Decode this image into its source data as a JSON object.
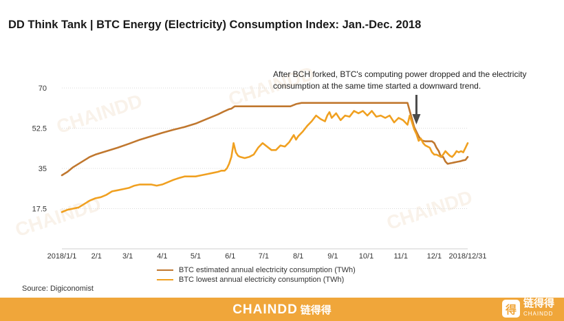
{
  "title": "DD Think Tank | BTC Energy (Electricity) Consumption Index: Jan.-Dec. 2018",
  "annotation": "After BCH forked, BTC's computing power dropped and the electricity consumption at the same time started a downward trend.",
  "source": "Source: Digiconomist",
  "footer": {
    "brand": "CHAINDD",
    "brand_cn": "链得得"
  },
  "logo": {
    "name": "链得得",
    "sub": "CHAINDD",
    "glyph": "得"
  },
  "watermark": "CHAINDD",
  "colors": {
    "estimated": "#c0772e",
    "lowest": "#f0a020",
    "footer": "#f0a63a",
    "arrow": "#4a4a4a"
  },
  "chart_data": {
    "type": "line",
    "title": "DD Think Tank | BTC Energy (Electricity) Consumption Index: Jan.-Dec. 2018",
    "xlabel": "",
    "ylabel": "",
    "ylim": [
      0,
      70
    ],
    "yticks": [
      17.5,
      35,
      52.5,
      70
    ],
    "xlim": [
      0,
      364
    ],
    "xticks": [
      {
        "day": 0,
        "label": "2018/1/1"
      },
      {
        "day": 31,
        "label": "2/1"
      },
      {
        "day": 59,
        "label": "3/1"
      },
      {
        "day": 90,
        "label": "4/1"
      },
      {
        "day": 120,
        "label": "5/1"
      },
      {
        "day": 151,
        "label": "6/1"
      },
      {
        "day": 181,
        "label": "7/1"
      },
      {
        "day": 212,
        "label": "8/1"
      },
      {
        "day": 243,
        "label": "9/1"
      },
      {
        "day": 273,
        "label": "10/1"
      },
      {
        "day": 304,
        "label": "11/1"
      },
      {
        "day": 334,
        "label": "12/1"
      },
      {
        "day": 364,
        "label": "2018/12/31"
      }
    ],
    "annotation_day": 318,
    "series": [
      {
        "name": "BTC estimated annual electricity consumption (TWh)",
        "x": [
          0,
          5,
          10,
          15,
          20,
          25,
          30,
          40,
          50,
          60,
          70,
          80,
          90,
          100,
          110,
          120,
          130,
          140,
          145,
          150,
          152,
          155,
          160,
          170,
          180,
          190,
          200,
          205,
          210,
          215,
          220,
          230,
          240,
          250,
          260,
          270,
          280,
          290,
          300,
          310,
          312,
          314,
          316,
          318,
          320,
          322,
          324,
          326,
          328,
          330,
          332,
          334,
          336,
          338,
          340,
          342,
          344,
          346,
          348,
          350,
          352,
          354,
          356,
          358,
          360,
          362,
          364
        ],
        "y": [
          32,
          33.5,
          35.5,
          37,
          38.5,
          40,
          41,
          42.5,
          44,
          45.7,
          47.5,
          49,
          50.5,
          51.8,
          53,
          54.5,
          56.5,
          58.5,
          59.7,
          60.8,
          61,
          62,
          62,
          62,
          62,
          62,
          62,
          62,
          63,
          63.5,
          63.5,
          63.5,
          63.5,
          63.5,
          63.5,
          63.5,
          63.5,
          63.5,
          63.5,
          63.5,
          60,
          56.5,
          53,
          51,
          49,
          47.5,
          47,
          46.8,
          46.8,
          46.8,
          46.8,
          46,
          44,
          42.5,
          40,
          40,
          38,
          37,
          37.2,
          37.4,
          37.6,
          37.8,
          38,
          38.2,
          38.5,
          38.7,
          40
        ]
      },
      {
        "name": "BTC lowest annual electricity consumption (TWh)",
        "x": [
          0,
          5,
          10,
          15,
          20,
          25,
          30,
          35,
          40,
          45,
          50,
          55,
          60,
          65,
          70,
          75,
          80,
          85,
          90,
          95,
          100,
          105,
          110,
          115,
          120,
          125,
          130,
          135,
          140,
          143,
          146,
          148,
          150,
          152,
          154,
          156,
          158,
          160,
          164,
          168,
          172,
          176,
          180,
          184,
          188,
          192,
          196,
          200,
          204,
          206,
          208,
          210,
          212,
          216,
          220,
          224,
          228,
          232,
          236,
          238,
          240,
          242,
          246,
          250,
          254,
          258,
          262,
          266,
          270,
          274,
          278,
          282,
          286,
          290,
          294,
          298,
          302,
          306,
          310,
          312,
          314,
          316,
          318,
          320,
          322,
          324,
          326,
          328,
          330,
          332,
          334,
          336,
          338,
          340,
          342,
          344,
          346,
          348,
          350,
          352,
          354,
          356,
          358,
          360,
          362,
          364
        ],
        "y": [
          16,
          17,
          17.5,
          18,
          19.5,
          21,
          22,
          22.5,
          23.5,
          25,
          25.5,
          26,
          26.5,
          27.5,
          28,
          28,
          28,
          27.5,
          28,
          29,
          30,
          30.8,
          31.5,
          31.5,
          31.5,
          32,
          32.5,
          33,
          33.5,
          34,
          34,
          35,
          37,
          40,
          46,
          42,
          40.5,
          40,
          39.5,
          40,
          41,
          44,
          46,
          44.5,
          43,
          43,
          45,
          44.5,
          46.5,
          48,
          49.5,
          47.5,
          49,
          51,
          53.5,
          55.5,
          58,
          56.5,
          55.5,
          58,
          59.5,
          57,
          59,
          56,
          58,
          57.5,
          60,
          59,
          60,
          58,
          60,
          57.5,
          58,
          57,
          58,
          55,
          57,
          56,
          54,
          58,
          55,
          52,
          50,
          47,
          48,
          46,
          45,
          44.5,
          44,
          42,
          41,
          41,
          40.5,
          40,
          41,
          42.5,
          41.5,
          40.5,
          40,
          41,
          42.5,
          42,
          42.5,
          42,
          44,
          46
        ]
      }
    ]
  }
}
